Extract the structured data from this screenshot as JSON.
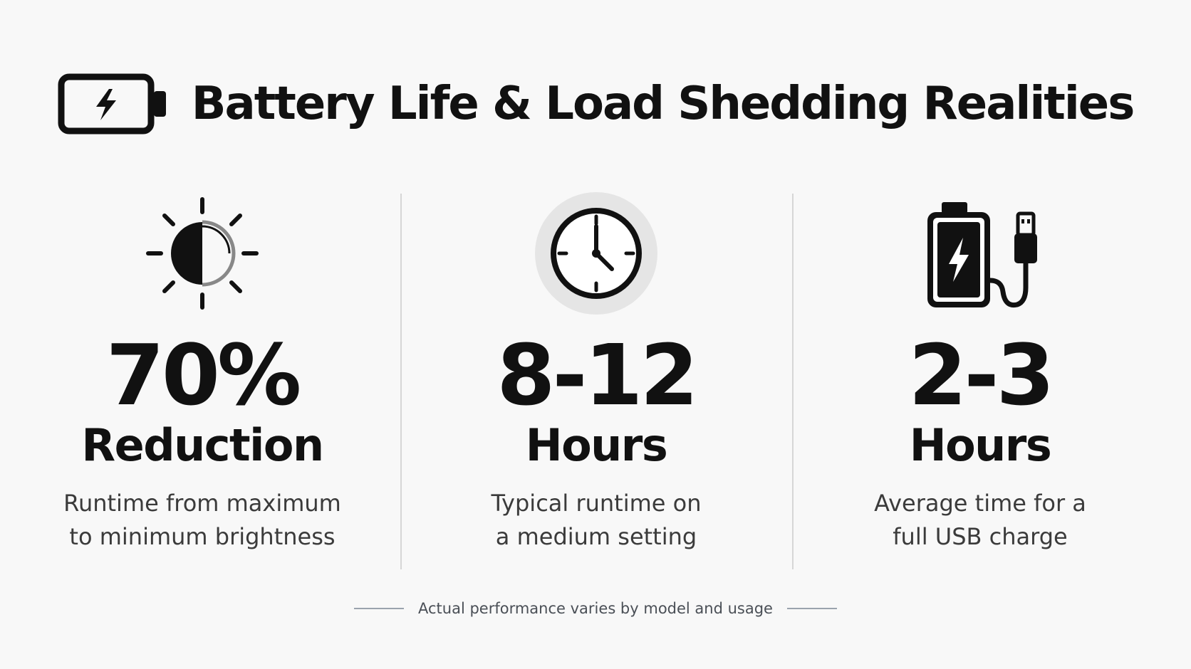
{
  "header": {
    "title": "Battery Life & Load Shedding Realities",
    "icon": "battery-charging-icon"
  },
  "stats": [
    {
      "icon": "brightness-icon",
      "value": "70%",
      "unit": "Reduction",
      "description": [
        "Runtime from maximum",
        "to minimum brightness"
      ]
    },
    {
      "icon": "clock-icon",
      "value": "8-12",
      "unit": "Hours",
      "description": [
        "Typical runtime on",
        "a medium setting"
      ]
    },
    {
      "icon": "usb-charging-icon",
      "value": "2-3",
      "unit": "Hours",
      "description": [
        "Average time for a",
        "full USB charge"
      ]
    }
  ],
  "footer": {
    "note": "Actual performance varies by model and usage"
  },
  "colors": {
    "background": "#f8f8f8",
    "text": "#111111",
    "description": "#3b3b3b",
    "divider": "#d6d6d6",
    "clock_halo": "#e5e5e5"
  }
}
